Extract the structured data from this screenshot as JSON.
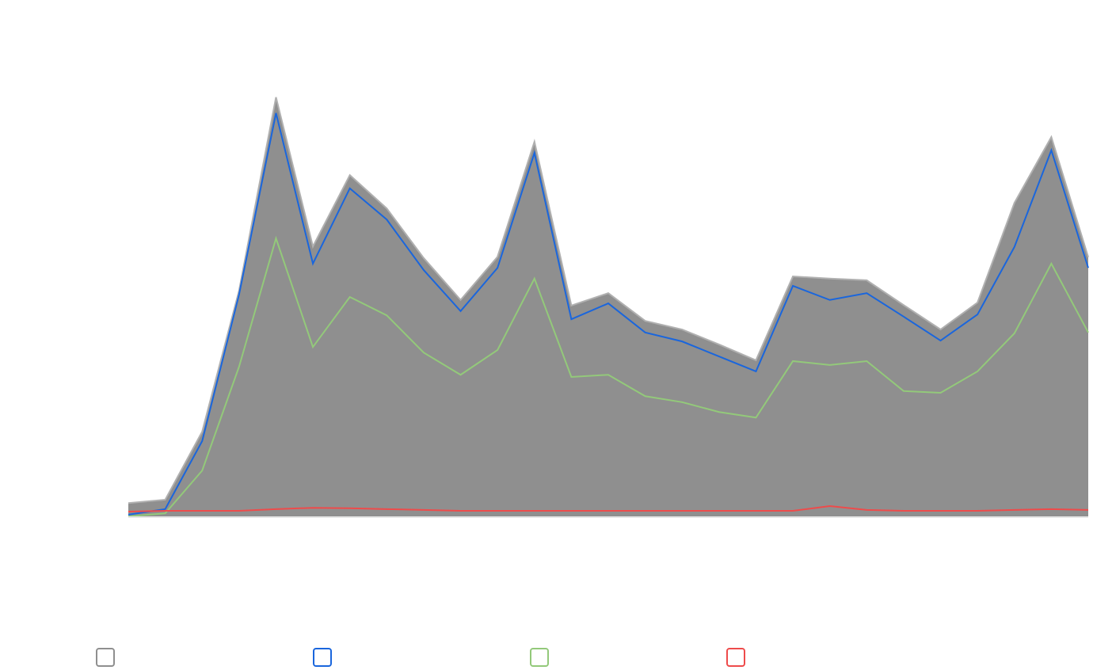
{
  "chart_data": {
    "type": "area",
    "categories": [
      null,
      null,
      null,
      null,
      null,
      null,
      null,
      null,
      null,
      null,
      null,
      null,
      null,
      null,
      null,
      null,
      null,
      null,
      null,
      null,
      null,
      null,
      null,
      null,
      null,
      null,
      null
    ],
    "ylim": [
      0,
      100
    ],
    "series": [
      {
        "color": "#8f8f8f",
        "area": true,
        "values": [
          3.1,
          3.9,
          19.8,
          52.8,
          98.0,
          63.1,
          79.8,
          72.0,
          60.4,
          50.6,
          60.7,
          87.6,
          49.3,
          52.2,
          45.7,
          43.7,
          40.2,
          36.5,
          56.1,
          55.6,
          55.2,
          49.4,
          43.7,
          50.0,
          73.3,
          88.7,
          60.6
        ]
      },
      {
        "color": "#1a66dd",
        "area": false,
        "values": [
          0.4,
          1.7,
          17.6,
          51.9,
          94.3,
          59.1,
          76.7,
          69.4,
          57.6,
          48.0,
          58.1,
          85.0,
          46.1,
          49.8,
          43.0,
          40.9,
          37.4,
          33.9,
          53.9,
          50.6,
          52.2,
          46.7,
          41.1,
          47.2,
          63.0,
          85.6,
          58.1
        ]
      },
      {
        "color": "#93c97a",
        "area": false,
        "values": [
          0,
          0.7,
          10.7,
          35.0,
          65.0,
          39.6,
          51.3,
          47.0,
          38.3,
          33.1,
          38.9,
          55.6,
          32.6,
          33.1,
          28.1,
          26.7,
          24.4,
          23.1,
          36.3,
          35.4,
          36.3,
          29.3,
          28.9,
          33.9,
          42.8,
          59.1,
          43.0
        ]
      },
      {
        "color": "#ee4b4b",
        "area": false,
        "values": [
          1.1,
          1.3,
          1.3,
          1.3,
          1.7,
          2.0,
          1.9,
          1.7,
          1.5,
          1.3,
          1.3,
          1.3,
          1.3,
          1.3,
          1.3,
          1.3,
          1.3,
          1.3,
          1.3,
          2.4,
          1.5,
          1.3,
          1.3,
          1.3,
          1.5,
          1.7,
          1.5
        ]
      }
    ]
  }
}
